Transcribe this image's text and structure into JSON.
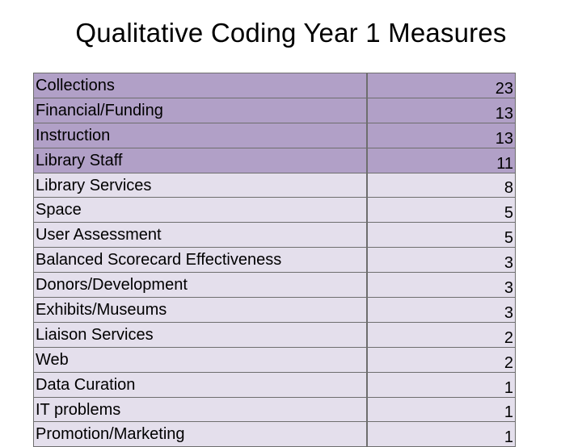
{
  "title": "Qualitative Coding Year 1 Measures",
  "colors": {
    "highlight": "#b1a0c7",
    "light": "#e4dfec",
    "border": "#6e6e6e"
  },
  "rows": [
    {
      "label": "Collections",
      "count": "23",
      "highlight": true
    },
    {
      "label": "Financial/Funding",
      "count": "13",
      "highlight": true
    },
    {
      "label": "Instruction",
      "count": "13",
      "highlight": true
    },
    {
      "label": "Library Staff",
      "count": "11",
      "highlight": true
    },
    {
      "label": "Library Services",
      "count": "8",
      "highlight": false
    },
    {
      "label": "Space",
      "count": "5",
      "highlight": false
    },
    {
      "label": "User Assessment",
      "count": "5",
      "highlight": false
    },
    {
      "label": "Balanced Scorecard Effectiveness",
      "count": "3",
      "highlight": false
    },
    {
      "label": "Donors/Development",
      "count": "3",
      "highlight": false
    },
    {
      "label": "Exhibits/Museums",
      "count": "3",
      "highlight": false
    },
    {
      "label": "Liaison Services",
      "count": "2",
      "highlight": false
    },
    {
      "label": "Web",
      "count": "2",
      "highlight": false
    },
    {
      "label": "Data Curation",
      "count": "1",
      "highlight": false
    },
    {
      "label": "IT problems",
      "count": "1",
      "highlight": false
    },
    {
      "label": "Promotion/Marketing",
      "count": "1",
      "highlight": false
    }
  ]
}
